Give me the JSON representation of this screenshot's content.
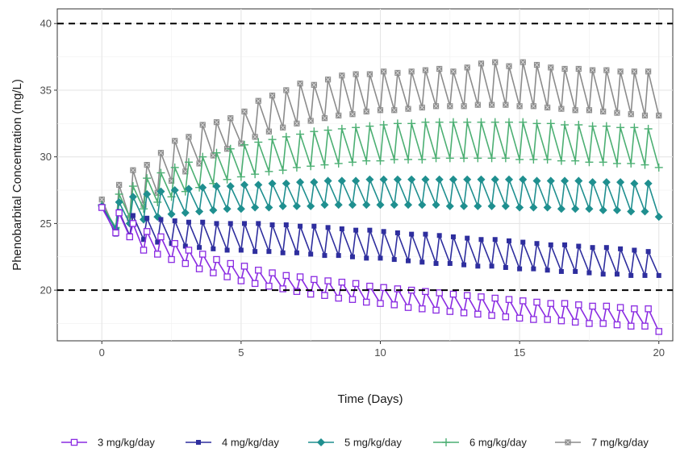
{
  "chart_data": {
    "type": "line",
    "xlabel": "Time (Days)",
    "ylabel": "Phenobarbital Concentration (mg/L)",
    "xlim": [
      -1.6,
      20.5
    ],
    "ylim": [
      16.2,
      41.1
    ],
    "x_ticks": [
      0,
      5,
      10,
      15,
      20
    ],
    "y_ticks": [
      20,
      25,
      30,
      35,
      40
    ],
    "grid": true,
    "legend_position": "bottom",
    "reference_lines": [
      {
        "y": 20,
        "style": "dashed",
        "color": "#000000"
      },
      {
        "y": 40,
        "style": "dashed",
        "color": "#000000"
      }
    ],
    "dose_interval_days": 0.5,
    "series": [
      {
        "name": "3 mg/kg/day",
        "color": "#8a2be2",
        "marker": "square-open",
        "x": [
          0,
          0.5,
          1,
          1.5,
          2,
          2.5,
          3,
          3.5,
          4,
          4.5,
          5,
          5.5,
          6,
          6.5,
          7,
          7.5,
          8,
          8.5,
          9,
          9.5,
          10,
          10.5,
          11,
          11.5,
          12,
          12.5,
          13,
          13.5,
          14,
          14.5,
          15,
          15.5,
          16,
          16.5,
          17,
          17.5,
          18,
          18.5,
          19,
          19.5,
          20
        ],
        "peak": [
          26.2,
          25.8,
          25.0,
          24.4,
          24.0,
          23.5,
          23.0,
          22.7,
          22.3,
          22.0,
          21.8,
          21.5,
          21.3,
          21.1,
          21.0,
          20.8,
          20.7,
          20.6,
          20.5,
          20.3,
          20.2,
          20.1,
          20.0,
          19.9,
          19.8,
          19.7,
          19.6,
          19.5,
          19.4,
          19.3,
          19.2,
          19.1,
          19.0,
          19.0,
          18.9,
          18.8,
          18.8,
          18.7,
          18.6,
          18.6,
          null
        ],
        "trough": [
          null,
          24.3,
          24.0,
          23.0,
          22.7,
          22.3,
          22.0,
          21.6,
          21.3,
          21.0,
          20.7,
          20.5,
          20.3,
          20.1,
          19.9,
          19.7,
          19.6,
          19.4,
          19.3,
          19.1,
          19.0,
          18.9,
          18.7,
          18.6,
          18.5,
          18.4,
          18.3,
          18.2,
          18.1,
          18.0,
          17.9,
          17.8,
          17.8,
          17.7,
          17.6,
          17.5,
          17.5,
          17.4,
          17.3,
          17.3,
          16.9
        ]
      },
      {
        "name": "4 mg/kg/day",
        "color": "#2e2e9e",
        "marker": "square",
        "x": [
          0,
          0.5,
          1,
          1.5,
          2,
          2.5,
          3,
          3.5,
          4,
          4.5,
          5,
          5.5,
          6,
          6.5,
          7,
          7.5,
          8,
          8.5,
          9,
          9.5,
          10,
          10.5,
          11,
          11.5,
          12,
          12.5,
          13,
          13.5,
          14,
          14.5,
          15,
          15.5,
          16,
          16.5,
          17,
          17.5,
          18,
          18.5,
          19,
          19.5,
          20
        ],
        "peak": [
          26.3,
          25.9,
          25.6,
          25.4,
          25.3,
          25.2,
          25.1,
          25.1,
          25.0,
          25.0,
          25.0,
          25.0,
          24.9,
          24.9,
          24.8,
          24.8,
          24.7,
          24.6,
          24.5,
          24.5,
          24.4,
          24.3,
          24.2,
          24.2,
          24.1,
          24.0,
          23.9,
          23.8,
          23.8,
          23.7,
          23.6,
          23.5,
          23.4,
          23.4,
          23.3,
          23.2,
          23.2,
          23.1,
          23.0,
          22.9,
          null
        ],
        "trough": [
          null,
          24.2,
          24.1,
          23.8,
          23.6,
          23.5,
          23.3,
          23.2,
          23.1,
          23.0,
          23.0,
          22.9,
          22.9,
          22.8,
          22.8,
          22.7,
          22.6,
          22.6,
          22.5,
          22.4,
          22.4,
          22.3,
          22.2,
          22.1,
          22.0,
          22.0,
          21.9,
          21.8,
          21.8,
          21.7,
          21.6,
          21.6,
          21.5,
          21.4,
          21.4,
          21.3,
          21.2,
          21.2,
          21.1,
          21.1,
          21.1
        ]
      },
      {
        "name": "5 mg/kg/day",
        "color": "#1f8f8f",
        "marker": "diamond",
        "x": [
          0,
          0.5,
          1,
          1.5,
          2,
          2.5,
          3,
          3.5,
          4,
          4.5,
          5,
          5.5,
          6,
          6.5,
          7,
          7.5,
          8,
          8.5,
          9,
          9.5,
          10,
          10.5,
          11,
          11.5,
          12,
          12.5,
          13,
          13.5,
          14,
          14.5,
          15,
          15.5,
          16,
          16.5,
          17,
          17.5,
          18,
          18.5,
          19,
          19.5,
          20
        ],
        "peak": [
          26.3,
          26.6,
          27.0,
          27.2,
          27.4,
          27.5,
          27.6,
          27.7,
          27.8,
          27.8,
          27.9,
          27.9,
          28.0,
          28.0,
          28.1,
          28.1,
          28.2,
          28.2,
          28.2,
          28.3,
          28.3,
          28.3,
          28.3,
          28.3,
          28.3,
          28.3,
          28.3,
          28.3,
          28.3,
          28.3,
          28.3,
          28.2,
          28.2,
          28.2,
          28.2,
          28.1,
          28.1,
          28.1,
          28.0,
          28.0,
          null
        ],
        "trough": [
          null,
          24.6,
          25.0,
          25.3,
          25.5,
          25.7,
          25.8,
          25.9,
          26.0,
          26.1,
          26.1,
          26.2,
          26.2,
          26.3,
          26.3,
          26.3,
          26.4,
          26.4,
          26.4,
          26.4,
          26.4,
          26.4,
          26.4,
          26.4,
          26.4,
          26.3,
          26.3,
          26.3,
          26.3,
          26.3,
          26.2,
          26.2,
          26.2,
          26.1,
          26.1,
          26.1,
          26.0,
          26.0,
          25.9,
          25.9,
          25.5
        ]
      },
      {
        "name": "6 mg/kg/day",
        "color": "#4caf73",
        "marker": "plus",
        "x": [
          0,
          0.5,
          1,
          1.5,
          2,
          2.5,
          3,
          3.5,
          4,
          4.5,
          5,
          5.5,
          6,
          6.5,
          7,
          7.5,
          8,
          8.5,
          9,
          9.5,
          10,
          10.5,
          11,
          11.5,
          12,
          12.5,
          13,
          13.5,
          14,
          14.5,
          15,
          15.5,
          16,
          16.5,
          17,
          17.5,
          18,
          18.5,
          19,
          19.5,
          20
        ],
        "peak": [
          26.4,
          27.2,
          27.8,
          28.4,
          28.8,
          29.2,
          29.6,
          30.0,
          30.3,
          30.6,
          30.9,
          31.1,
          31.3,
          31.5,
          31.7,
          31.9,
          32.0,
          32.1,
          32.2,
          32.3,
          32.4,
          32.5,
          32.5,
          32.6,
          32.6,
          32.6,
          32.6,
          32.6,
          32.6,
          32.6,
          32.6,
          32.5,
          32.5,
          32.4,
          32.4,
          32.3,
          32.3,
          32.2,
          32.2,
          32.1,
          null
        ],
        "trough": [
          null,
          24.7,
          25.5,
          26.1,
          26.6,
          27.0,
          27.4,
          27.7,
          28.0,
          28.3,
          28.5,
          28.7,
          28.9,
          29.0,
          29.2,
          29.3,
          29.4,
          29.5,
          29.6,
          29.7,
          29.7,
          29.8,
          29.8,
          29.8,
          29.9,
          29.9,
          29.9,
          29.9,
          29.9,
          29.9,
          29.8,
          29.8,
          29.8,
          29.7,
          29.7,
          29.6,
          29.6,
          29.5,
          29.5,
          29.4,
          29.2
        ]
      },
      {
        "name": "7 mg/kg/day",
        "color": "#8c8c8c",
        "marker": "square-cross",
        "x": [
          0,
          0.5,
          1,
          1.5,
          2,
          2.5,
          3,
          3.5,
          4,
          4.5,
          5,
          5.5,
          6,
          6.5,
          7,
          7.5,
          8,
          8.5,
          9,
          9.5,
          10,
          10.5,
          11,
          11.5,
          12,
          12.5,
          13,
          13.5,
          14,
          14.5,
          15,
          15.5,
          16,
          16.5,
          17,
          17.5,
          18,
          18.5,
          19,
          19.5,
          20
        ],
        "peak": [
          26.8,
          27.9,
          29.0,
          29.4,
          30.3,
          31.2,
          31.5,
          32.4,
          32.6,
          32.9,
          33.4,
          34.2,
          34.6,
          35.0,
          35.5,
          35.4,
          35.8,
          36.1,
          36.2,
          36.2,
          36.4,
          36.3,
          36.4,
          36.5,
          36.6,
          36.4,
          36.7,
          37.0,
          37.1,
          36.8,
          37.1,
          36.9,
          36.7,
          36.6,
          36.6,
          36.5,
          36.5,
          36.4,
          36.4,
          36.4,
          null
        ],
        "trough": [
          null,
          24.4,
          25.4,
          26.4,
          27.3,
          28.2,
          28.9,
          29.5,
          30.1,
          30.6,
          31.0,
          31.5,
          31.9,
          32.2,
          32.5,
          32.7,
          32.9,
          33.1,
          33.2,
          33.4,
          33.5,
          33.5,
          33.6,
          33.7,
          33.8,
          33.8,
          33.8,
          33.9,
          33.9,
          33.9,
          33.8,
          33.8,
          33.7,
          33.6,
          33.5,
          33.5,
          33.4,
          33.3,
          33.2,
          33.1,
          33.1
        ]
      }
    ]
  }
}
